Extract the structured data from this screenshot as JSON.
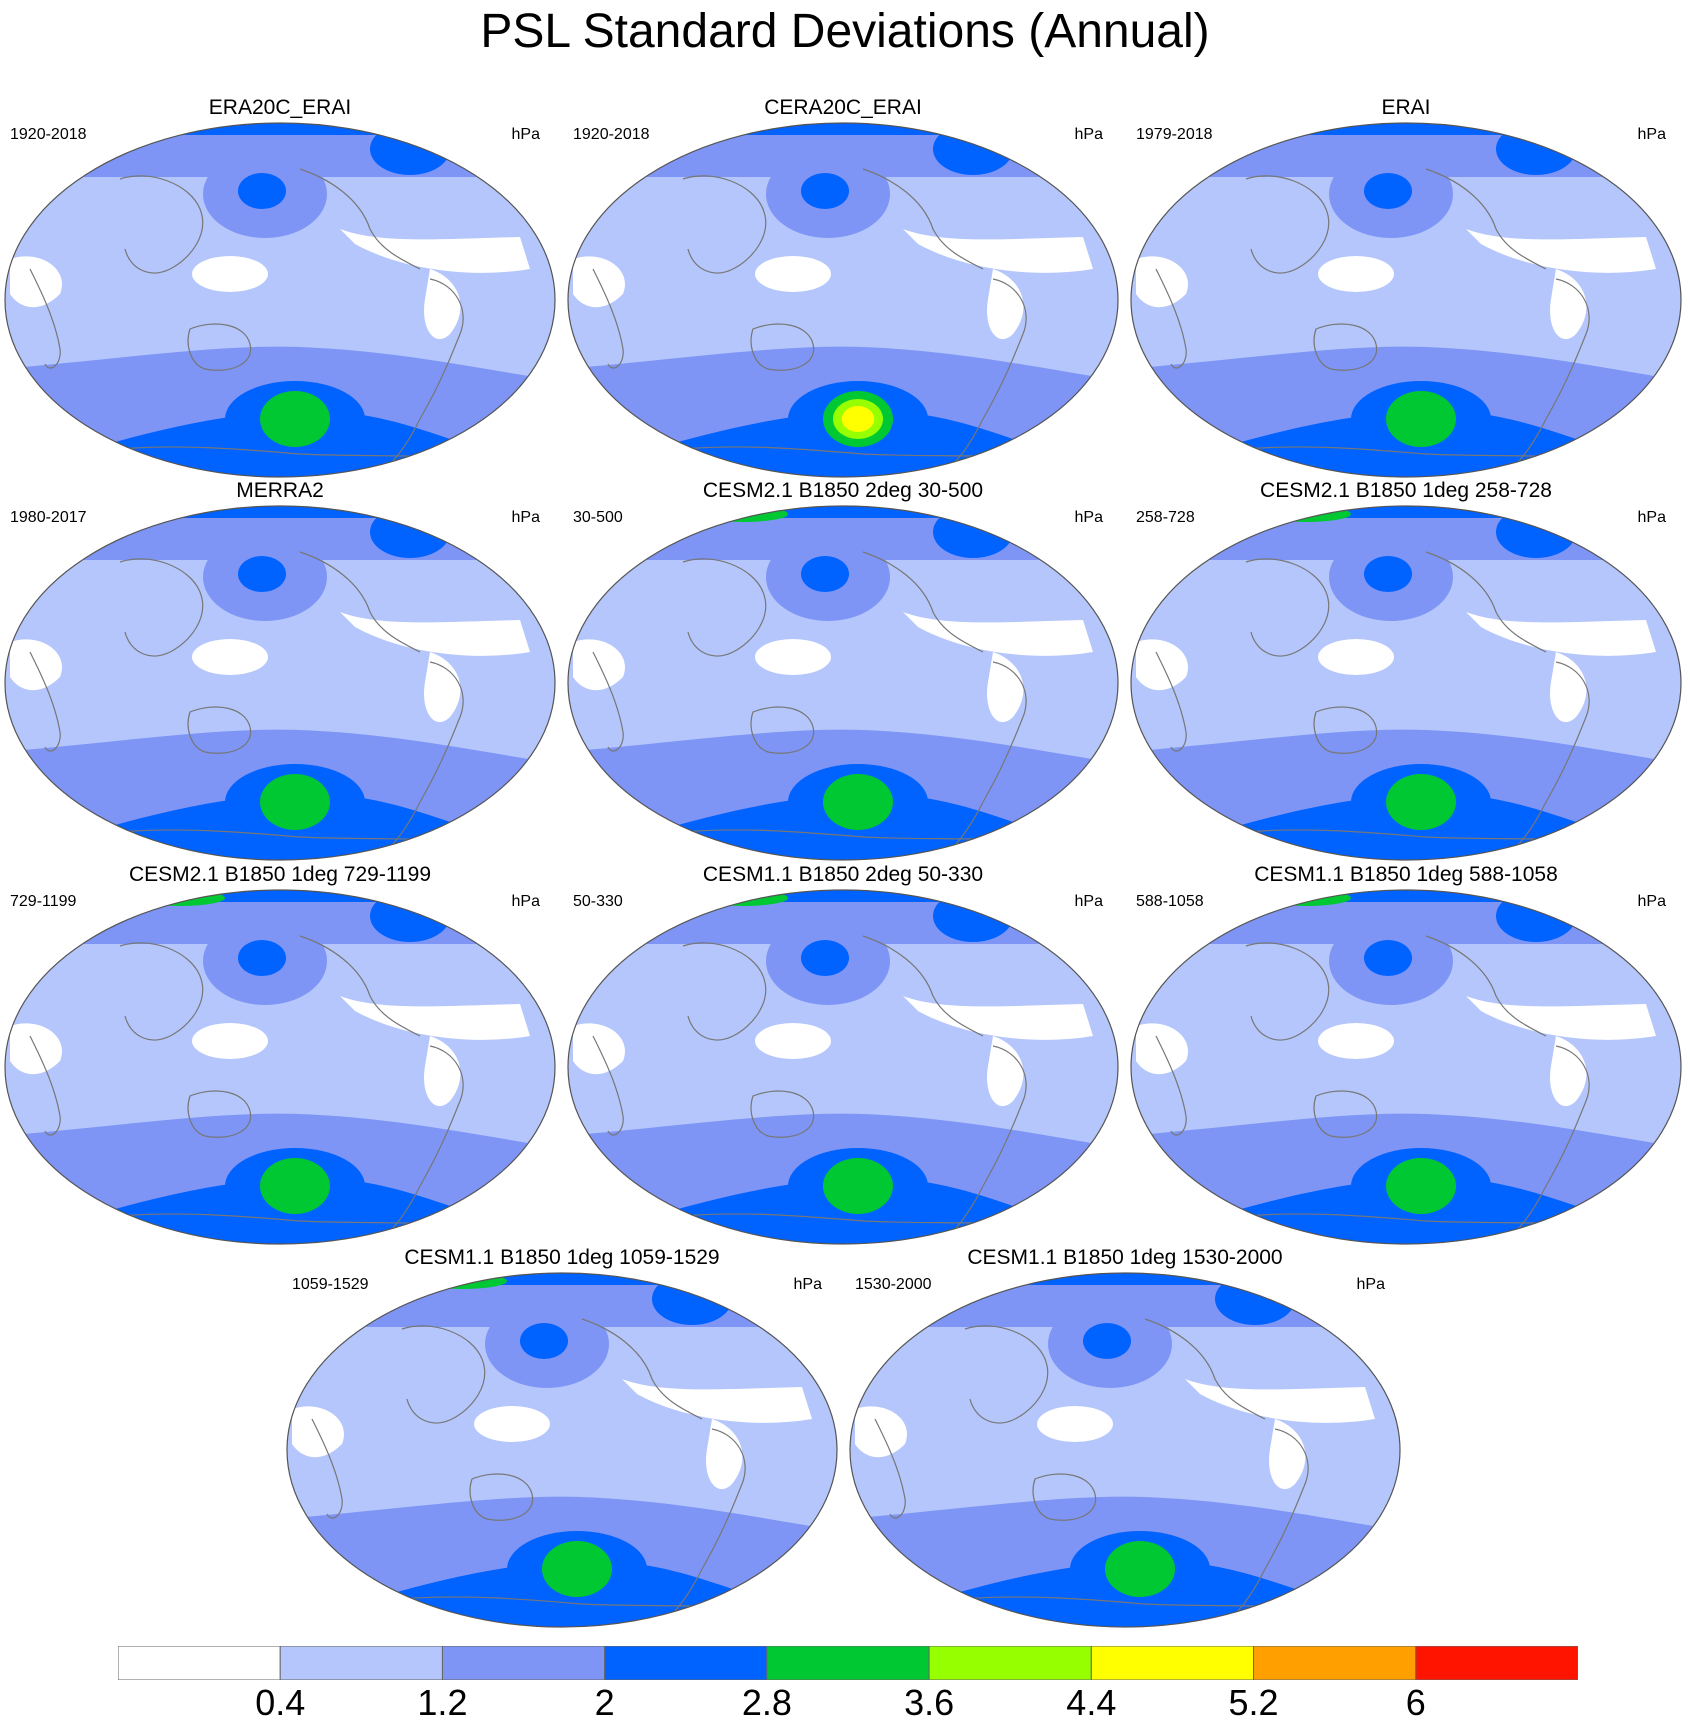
{
  "title": "PSL Standard Deviations (Annual)",
  "colors": {
    "levels": [
      "#ffffff",
      "#b4c6fb",
      "#7e95f5",
      "#0062ff",
      "#00c832",
      "#96ff00",
      "#ffff00",
      "#ffa000",
      "#ff1400"
    ],
    "coast": "#777777",
    "outline": "#555555"
  },
  "colorbar": {
    "labels": [
      "0.4",
      "1.2",
      "2",
      "2.8",
      "3.6",
      "4.4",
      "5.2",
      "6"
    ]
  },
  "panels": [
    {
      "title": "ERA20C_ERAI",
      "range": "1920-2018",
      "unit": "hPa",
      "south_max_level": 4,
      "north_max_level": 3
    },
    {
      "title": "CERA20C_ERAI",
      "range": "1920-2018",
      "unit": "hPa",
      "south_max_level": 6,
      "north_max_level": 3
    },
    {
      "title": "ERAI",
      "range": "1979-2018",
      "unit": "hPa",
      "south_max_level": 4,
      "north_max_level": 3
    },
    {
      "title": "MERRA2",
      "range": "1980-2017",
      "unit": "hPa",
      "south_max_level": 4,
      "north_max_level": 3
    },
    {
      "title": "CESM2.1 B1850 2deg 30-500",
      "range": "30-500",
      "unit": "hPa",
      "south_max_level": 4,
      "north_max_level": 4
    },
    {
      "title": "CESM2.1 B1850 1deg 258-728",
      "range": "258-728",
      "unit": "hPa",
      "south_max_level": 4,
      "north_max_level": 4
    },
    {
      "title": "CESM2.1 B1850 1deg 729-1199",
      "range": "729-1199",
      "unit": "hPa",
      "south_max_level": 4,
      "north_max_level": 4
    },
    {
      "title": "CESM1.1 B1850 2deg 50-330",
      "range": "50-330",
      "unit": "hPa",
      "south_max_level": 4,
      "north_max_level": 4
    },
    {
      "title": "CESM1.1 B1850 1deg 588-1058",
      "range": "588-1058",
      "unit": "hPa",
      "south_max_level": 4,
      "north_max_level": 4
    },
    {
      "title": "CESM1.1 B1850 1deg 1059-1529",
      "range": "1059-1529",
      "unit": "hPa",
      "south_max_level": 4,
      "north_max_level": 4
    },
    {
      "title": "CESM1.1 B1850 1deg 1530-2000",
      "range": "1530-2000",
      "unit": "hPa",
      "south_max_level": 4,
      "north_max_level": 3
    }
  ]
}
